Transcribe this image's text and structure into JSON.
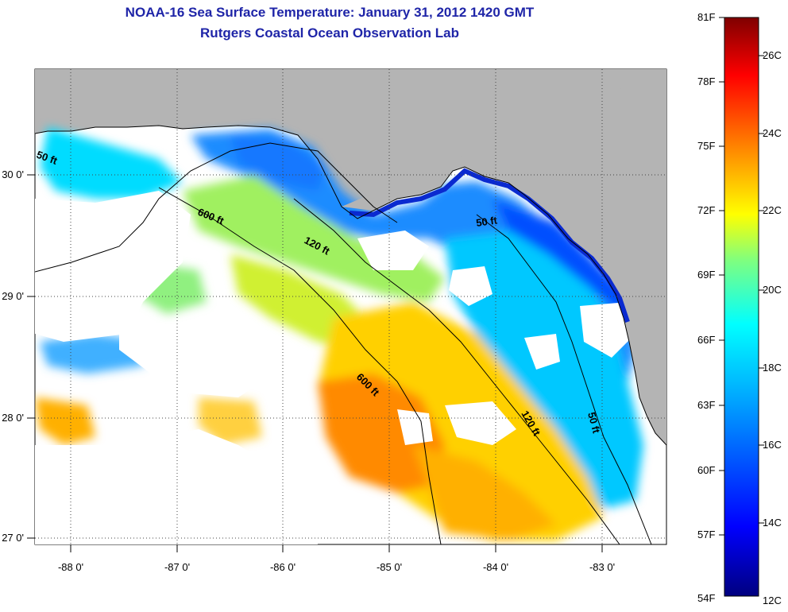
{
  "title": "NOAA-16 Sea Surface Temperature:  January 31, 2012 1420 GMT",
  "subtitle": "Rutgers Coastal Ocean Observation Lab",
  "x_ticks": [
    "-88 0'",
    "-87 0'",
    "-86 0'",
    "-85 0'",
    "-84 0'",
    "-83 0'"
  ],
  "y_ticks": [
    "30 0'",
    "29 0'",
    "28 0'",
    "27 0'"
  ],
  "contours": [
    "50 ft",
    "600 ft",
    "120 ft",
    "50 ft",
    "600 ft",
    "120 ft",
    "50 ft"
  ],
  "colorbar": {
    "fahrenheit": [
      "81F",
      "78F",
      "75F",
      "72F",
      "69F",
      "66F",
      "63F",
      "60F",
      "57F",
      "54F"
    ],
    "celsius": [
      "26C",
      "24C",
      "22C",
      "20C",
      "18C",
      "16C",
      "14C",
      "12C"
    ],
    "colors": [
      "#00007f",
      "#0000ff",
      "#007fff",
      "#00ffff",
      "#7fff7f",
      "#ffff00",
      "#ff7f00",
      "#ff0000",
      "#7f0000"
    ]
  },
  "colors": {
    "land": "#b4b4b4",
    "title": "#1f25a8",
    "cloud": "#ffffff"
  }
}
